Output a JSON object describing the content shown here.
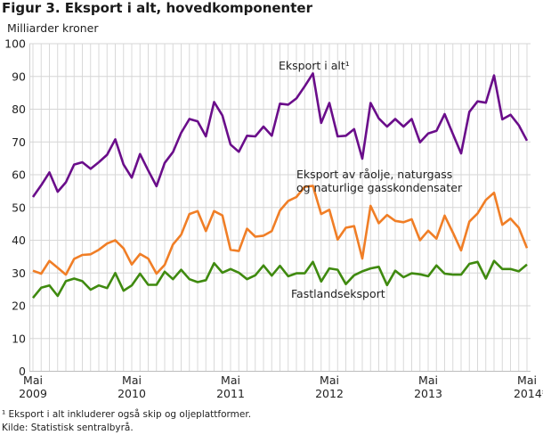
{
  "chart_data": {
    "type": "line",
    "title": "Figur 3. Eksport i alt, hovedkomponenter",
    "ylabel": "Milliarder kroner",
    "xlabel": "",
    "ylim": [
      0,
      100
    ],
    "yticks": [
      0,
      10,
      20,
      30,
      40,
      50,
      60,
      70,
      80,
      90,
      100
    ],
    "grid": true,
    "x_start": "Mai 2009",
    "x_end": "Mai 2014*",
    "x_frequency": "monthly",
    "xtick_labels": [
      {
        "month": "Mai",
        "year": "2009"
      },
      {
        "month": "Mai",
        "year": "2010"
      },
      {
        "month": "Mai",
        "year": "2011"
      },
      {
        "month": "Mai",
        "year": "2012"
      },
      {
        "month": "Mai",
        "year": "2013"
      },
      {
        "month": "Mai",
        "year": "2014*"
      }
    ],
    "series": [
      {
        "name": "Eksport i alt¹",
        "color": "#6a0d8a",
        "label_lines": [
          "Eksport i alt¹"
        ],
        "values": [
          53.2,
          56.8,
          60.7,
          54.8,
          57.7,
          63.1,
          63.8,
          61.8,
          63.8,
          66.1,
          70.8,
          63.1,
          59.1,
          66.3,
          61.3,
          56.5,
          63.6,
          66.9,
          72.8,
          77,
          76.3,
          71.7,
          82.2,
          78.1,
          69.2,
          67,
          71.9,
          71.7,
          74.7,
          71.9,
          81.7,
          81.4,
          83.3,
          87,
          90.9,
          75.8,
          81.9,
          71.7,
          71.9,
          73.9,
          64.9,
          81.9,
          77.2,
          74.7,
          77,
          74.7,
          77,
          69.9,
          72.6,
          73.4,
          78.5,
          72.4,
          66.5,
          79.2,
          82.4,
          82,
          90.3,
          76.9,
          78.3,
          75.1,
          70.4
        ]
      },
      {
        "name": "Eksport av råolje, naturgass og naturlige gasskondensater",
        "color": "#f07e26",
        "label_lines": [
          "Eksport av råolje, naturgass",
          "og naturlige gasskondensater"
        ],
        "values": [
          30.7,
          29.8,
          33.7,
          31.6,
          29.5,
          34.3,
          35.5,
          35.7,
          37.1,
          39,
          40,
          37.5,
          32.6,
          35.8,
          34.4,
          29.8,
          32.5,
          38.7,
          41.7,
          48,
          48.9,
          42.8,
          48.9,
          47.6,
          37.1,
          36.7,
          43.5,
          41.1,
          41.4,
          42.8,
          49.1,
          52,
          53.2,
          56.3,
          56.6,
          48,
          49.3,
          40.2,
          43.8,
          44.3,
          34.4,
          50.5,
          45.2,
          47.7,
          45.9,
          45.5,
          46.4,
          40,
          42.9,
          40.5,
          47.5,
          42.3,
          36.9,
          45.7,
          48.2,
          52.3,
          54.5,
          44.7,
          46.6,
          43.8,
          37.6
        ]
      },
      {
        "name": "Fastlandseksport",
        "color": "#3f8a0f",
        "label_lines": [
          "Fastlandseksport"
        ],
        "values": [
          22.4,
          25.5,
          26.2,
          23,
          27.5,
          28.3,
          27.5,
          24.9,
          26.2,
          25.4,
          30,
          24.6,
          26.2,
          29.8,
          26.4,
          26.4,
          30.4,
          28.1,
          31,
          28.1,
          27.2,
          27.8,
          33,
          30.1,
          31.2,
          30.1,
          28.1,
          29.3,
          32.3,
          29.2,
          32.2,
          29,
          29.9,
          29.9,
          33.4,
          27.4,
          31.4,
          31,
          26.6,
          29.3,
          30.5,
          31.4,
          31.9,
          26.3,
          30.7,
          28.7,
          29.9,
          29.6,
          29,
          32.3,
          29.8,
          29.5,
          29.5,
          32.8,
          33.4,
          28.3,
          33.7,
          31.2,
          31.2,
          30.5,
          32.6
        ]
      }
    ]
  },
  "footnotes": {
    "note1": "¹ Eksport i alt inkluderer også skip og oljeplattformer.",
    "source": "Kilde: Statistisk sentralbyrå."
  }
}
